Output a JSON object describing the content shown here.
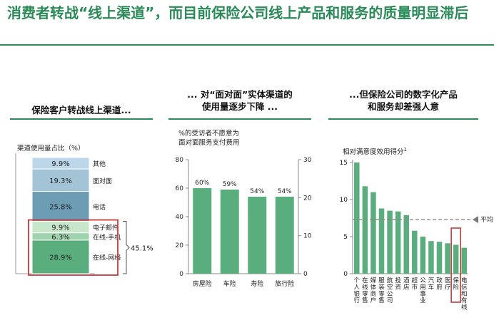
{
  "title": "消费者转战“线上渠道”，而目前保险公司线上产品和服务的质量明显滞后",
  "colors": {
    "accent": "#2a8a58",
    "bar_green": "#5aae7d",
    "highlight": "#c23b3b"
  },
  "chart_data": [
    {
      "type": "bar",
      "stacked": true,
      "heading": "保险客户转战线上渠道...",
      "ylabel": "渠道使用量占比（%）",
      "segments": [
        {
          "name": "其他",
          "value": 9.9,
          "label": "9.9%",
          "color": "#bcd6ea"
        },
        {
          "name": "面对面",
          "value": 19.3,
          "label": "19.3%",
          "color": "#a3c3d6"
        },
        {
          "name": "电话",
          "value": 25.8,
          "label": "25.8%",
          "color": "#6c9db5"
        },
        {
          "name": "电子邮件",
          "value": 9.9,
          "label": "9.9%",
          "color": "#c8e6c9"
        },
        {
          "name": "在线-手机",
          "value": 6.3,
          "label": "6.3%",
          "color": "#9ed3ad"
        },
        {
          "name": "在线-网络",
          "value": 28.9,
          "label": "28.9%",
          "color": "#5aae7d"
        }
      ],
      "online_total_label": "45.1%"
    },
    {
      "type": "bar",
      "heading_line1": "... 对“面对面”实体渠道的",
      "heading_line2": "使用量逐步下降 ...",
      "ylabel_line1": "%的受访者不愿意为",
      "ylabel_line2": "面对面服务支付费用",
      "categories": [
        "房屋险",
        "车险",
        "寿险",
        "旅行险"
      ],
      "values": [
        60,
        59,
        54,
        54
      ],
      "value_labels": [
        "60%",
        "59%",
        "54%",
        "54%"
      ],
      "ylim": [
        0,
        80
      ],
      "yticks": [
        0,
        20,
        40,
        60,
        80
      ],
      "y2lim": [
        0,
        30
      ],
      "y2ticks": [
        0,
        10,
        20,
        30
      ]
    },
    {
      "type": "bar",
      "heading_line1": "...但保险公司的数字化产品",
      "heading_line2": "和服务却差强人意",
      "ylabel": "相对满意度效用得分",
      "ylabel_sup": "1",
      "categories": [
        "个人银行",
        "在线零售",
        "媒体商户",
        "服装零售",
        "航空公司",
        "投资",
        "酒店",
        "超市",
        "公用事业",
        "汽车",
        "政府",
        "医疗",
        "保险",
        "电信和有线"
      ],
      "values": [
        15.0,
        11.8,
        11.0,
        8.8,
        8.5,
        8.4,
        7.9,
        5.8,
        5.0,
        4.4,
        4.3,
        4.1,
        3.9,
        3.5
      ],
      "average": 7.3,
      "average_label": "平均",
      "highlight": "保险",
      "ylim": [
        0,
        15
      ],
      "yticks": [
        0,
        5,
        10,
        15
      ]
    }
  ]
}
